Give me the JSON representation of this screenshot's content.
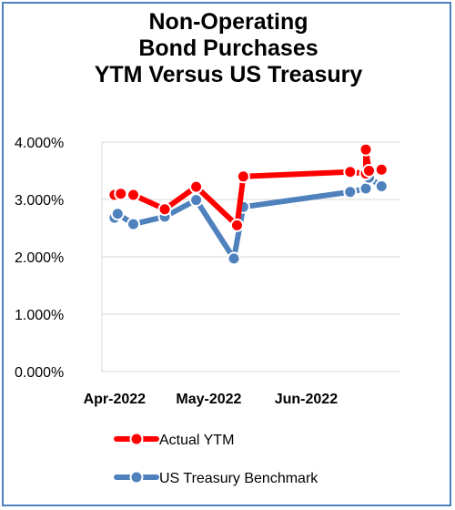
{
  "chart_data": {
    "type": "line",
    "title_lines": [
      "Non-Operating",
      "Bond Purchases",
      "YTM Versus US Treasury"
    ],
    "xlabel": "",
    "ylabel": "",
    "ylim": [
      0,
      0.04
    ],
    "yticks": [
      "0.000%",
      "1.000%",
      "2.000%",
      "3.000%",
      "4.000%"
    ],
    "xlim": [
      "2022-03-28",
      "2022-07-01"
    ],
    "xticks": [
      {
        "label": "Apr-2022",
        "date": "2022-04-01"
      },
      {
        "label": "May-2022",
        "date": "2022-05-01"
      },
      {
        "label": "Jun-2022",
        "date": "2022-06-01"
      }
    ],
    "grid": true,
    "legend_position": "bottom",
    "series": [
      {
        "name": "Actual YTM",
        "color": "#ff0000",
        "points": [
          {
            "x": "2022-04-01",
            "y": 0.0308
          },
          {
            "x": "2022-04-03",
            "y": 0.031
          },
          {
            "x": "2022-04-07",
            "y": 0.0308
          },
          {
            "x": "2022-04-17",
            "y": 0.0283
          },
          {
            "x": "2022-04-27",
            "y": 0.0322
          },
          {
            "x": "2022-05-10",
            "y": 0.0255
          },
          {
            "x": "2022-05-12",
            "y": 0.034
          },
          {
            "x": "2022-06-15",
            "y": 0.0348
          },
          {
            "x": "2022-06-20",
            "y": 0.0345
          },
          {
            "x": "2022-06-20",
            "y": 0.0387
          },
          {
            "x": "2022-06-21",
            "y": 0.035
          },
          {
            "x": "2022-06-25",
            "y": 0.0352
          }
        ]
      },
      {
        "name": "US Treasury Benchmark",
        "color": "#4f81bd",
        "points": [
          {
            "x": "2022-04-01",
            "y": 0.0268
          },
          {
            "x": "2022-04-02",
            "y": 0.0275
          },
          {
            "x": "2022-04-07",
            "y": 0.0257
          },
          {
            "x": "2022-04-17",
            "y": 0.027
          },
          {
            "x": "2022-04-27",
            "y": 0.0299
          },
          {
            "x": "2022-05-09",
            "y": 0.0197
          },
          {
            "x": "2022-05-12",
            "y": 0.0287
          },
          {
            "x": "2022-06-15",
            "y": 0.0313
          },
          {
            "x": "2022-06-20",
            "y": 0.0319
          },
          {
            "x": "2022-06-21",
            "y": 0.0338
          },
          {
            "x": "2022-06-25",
            "y": 0.0323
          }
        ]
      }
    ]
  }
}
